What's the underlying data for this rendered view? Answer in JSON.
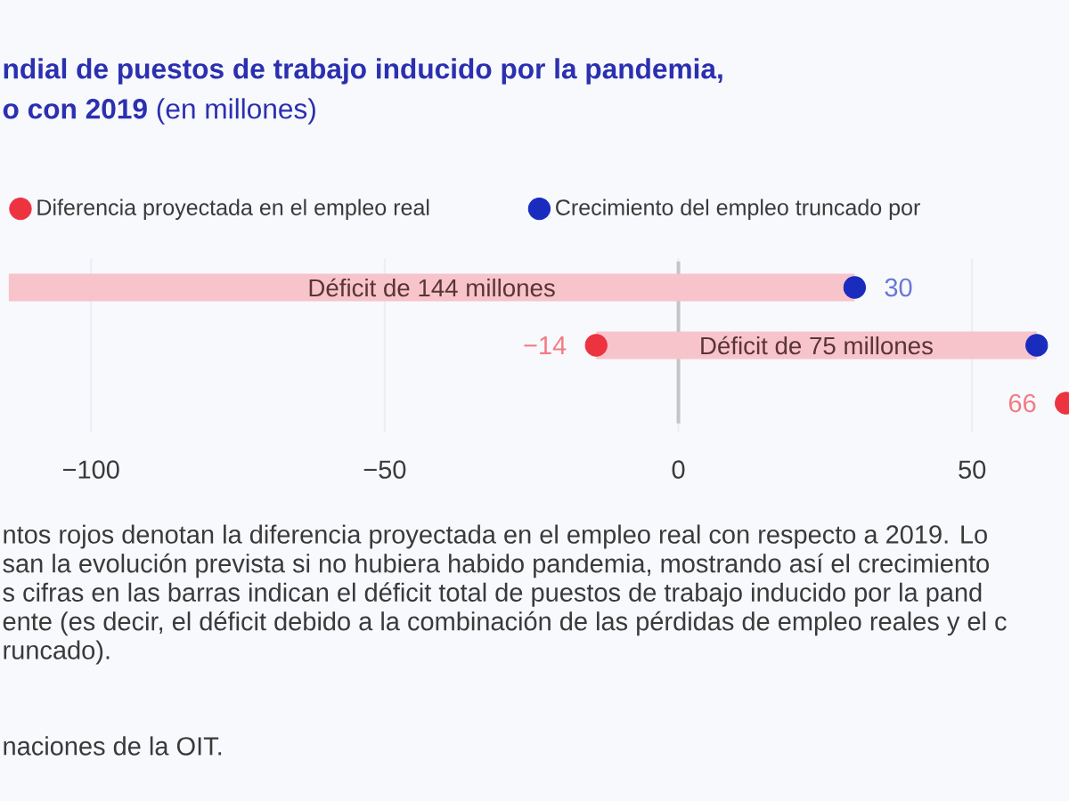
{
  "chart_data": {
    "type": "bar",
    "orientation": "horizontal",
    "title": "**ndial de puestos de trabajo inducido por la pandemia,**",
    "subtitle": "**o con 2019** (en millones)",
    "categories": [
      null,
      null,
      null
    ],
    "series": [
      {
        "color": "#f8c4cb",
        "base": [
          -114,
          -14,
          null
        ],
        "values": [
          144,
          75,
          null
        ],
        "value_labels": [
          "Déficit de 144 millones",
          "Déficit de 75 millones",
          null
        ]
      },
      {
        "type": "scatter",
        "name": "Diferencia proyectada en el empleo real",
        "color": "#ee3340",
        "values": [
          null,
          -14,
          66
        ],
        "value_labels": [
          null,
          "−14",
          "66"
        ]
      },
      {
        "type": "scatter",
        "name": "Crecimiento del empleo truncado por",
        "color": "#1a2cbe",
        "values": [
          30,
          61,
          null
        ],
        "value_labels": [
          "30",
          null,
          null
        ]
      }
    ],
    "xlim": [
      -115.5,
      66.5
    ],
    "xticks": [
      {
        "value": -100,
        "label": "−100"
      },
      {
        "value": -50,
        "label": "−50"
      },
      0,
      50
    ],
    "ref_lines": [
      {
        "axis": "x",
        "value": 0,
        "color": "#c4c4c4"
      }
    ],
    "grid": "x",
    "legend": "top left",
    "marker": "circle",
    "annotations": [
      "ntos rojos denotan la diferencia proyectada en el empleo real con respecto a 2019. Lo",
      "san la evolución prevista si no hubiera habido pandemia, mostrando así el crecimiento",
      "s cifras en las barras indican el déficit total de puestos de trabajo inducido por la pand",
      "ente (es decir, el déficit debido a la combinación de las pérdidas de empleo reales y el c",
      "runcado).",
      "naciones de la OIT."
    ]
  }
}
